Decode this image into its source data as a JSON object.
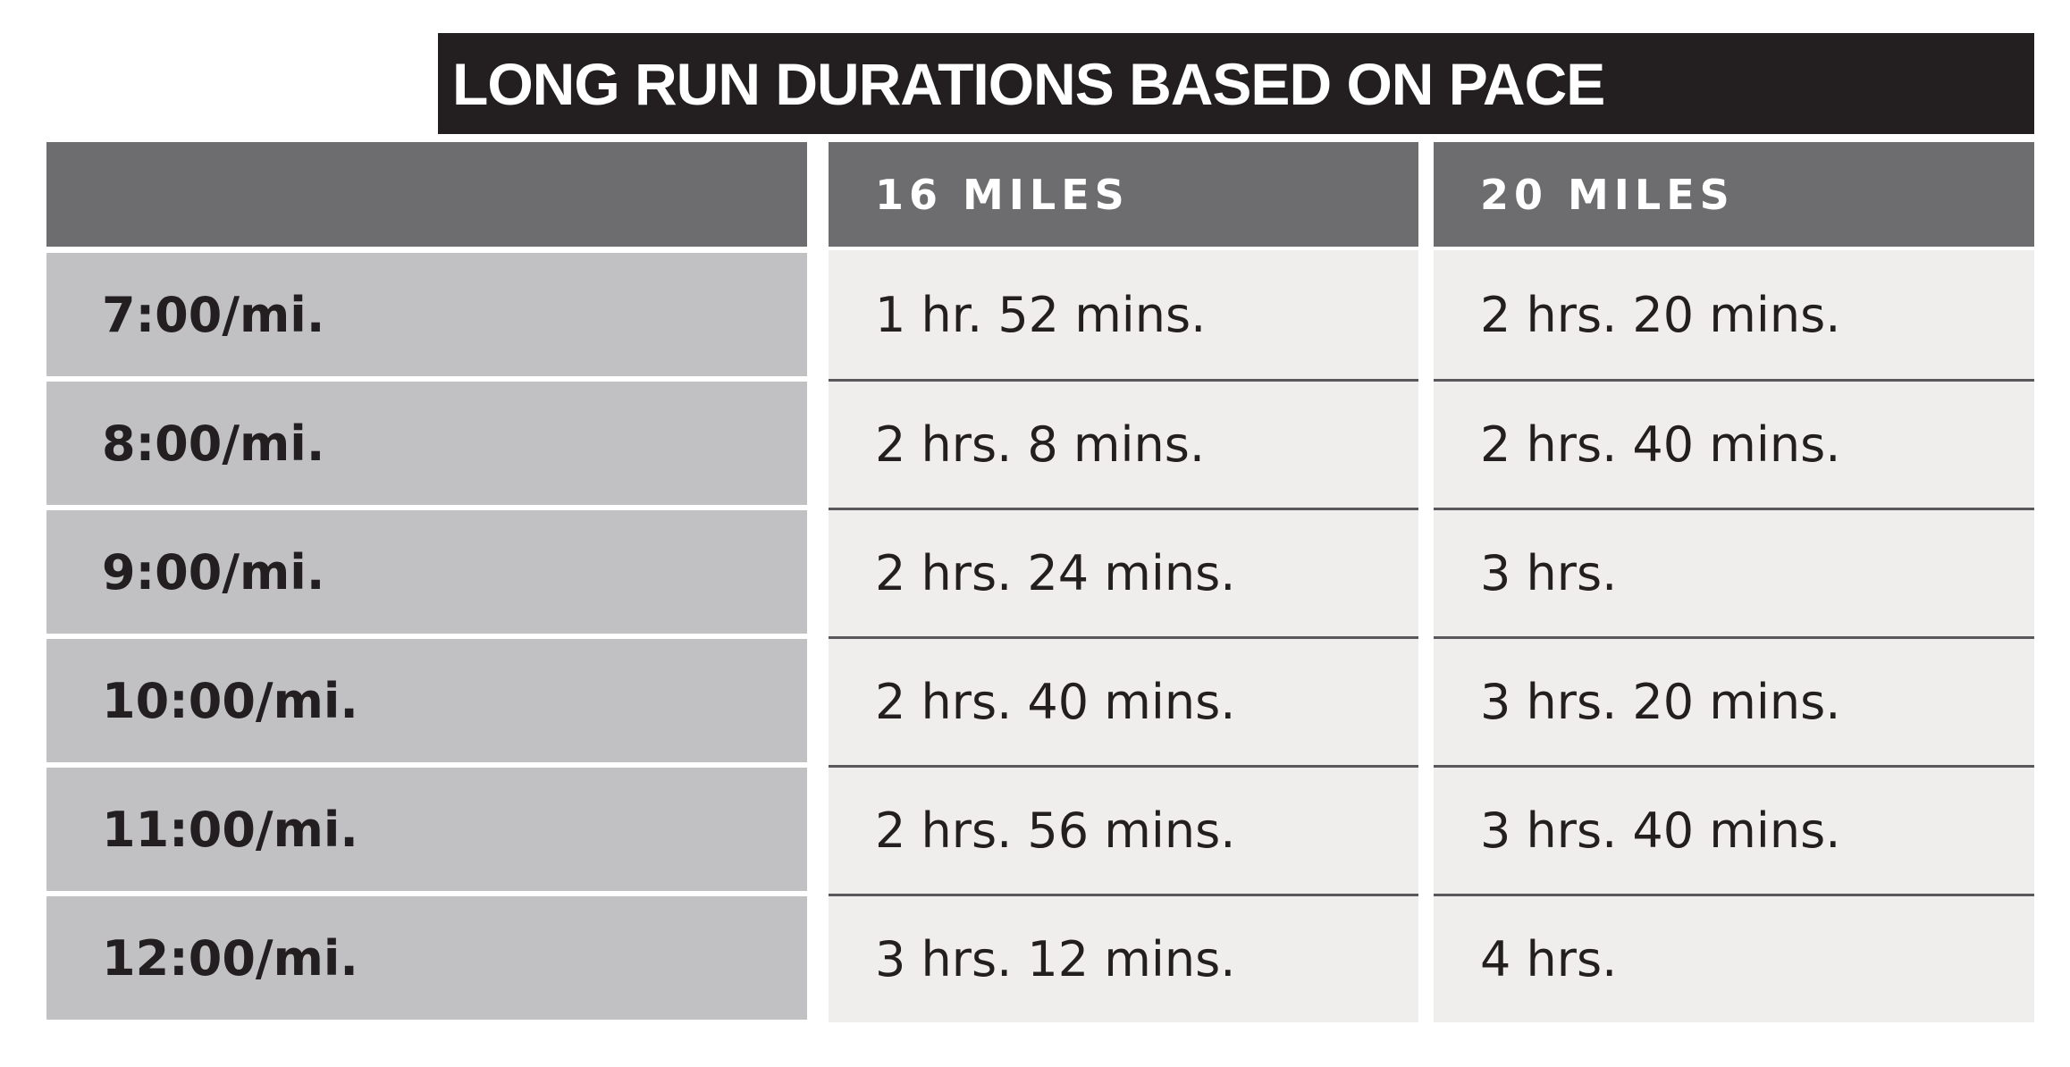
{
  "title": "LONG RUN DURATIONS BASED ON PACE",
  "table": {
    "headers": [
      "16 MILES",
      "20 MILES"
    ],
    "rows": [
      [
        "7:00/mi.",
        "1 hr. 52 mins.",
        "2 hrs. 20 mins."
      ],
      [
        "8:00/mi.",
        "2 hrs. 8 mins.",
        "2 hrs. 40 mins."
      ],
      [
        "9:00/mi.",
        "2 hrs. 24 mins.",
        "3 hrs."
      ],
      [
        "10:00/mi.",
        "2 hrs. 40 mins.",
        "3 hrs. 20 mins."
      ],
      [
        "11:00/mi.",
        "2 hrs. 56 mins.",
        "3 hrs. 40 mins."
      ],
      [
        "12:00/mi.",
        "3 hrs. 12 mins.",
        "4 hrs."
      ]
    ]
  }
}
